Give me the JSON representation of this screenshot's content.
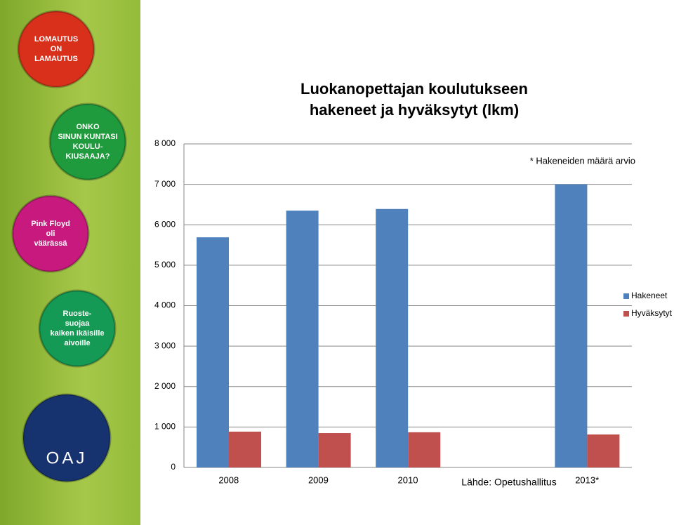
{
  "sidebar": {
    "badges": [
      {
        "lines": [
          "LOMAUTUS",
          "ON",
          "LAMAUTUS"
        ]
      },
      {
        "lines": [
          "ONKO",
          "SINUN KUNTASI",
          "KOULU-",
          "KIUSAAJA?"
        ]
      },
      {
        "lines": [
          "Pink Floyd",
          "oli",
          "väärässä"
        ]
      },
      {
        "lines": [
          "Ruoste-",
          "suojaa",
          "kaiken ikäisille",
          "aivoille"
        ]
      },
      {
        "lines": [
          "OAJ"
        ]
      }
    ]
  },
  "chart_data": {
    "type": "bar",
    "title": "Luokanopettajan koulutukseen hakeneet ja hyväksytyt (lkm)",
    "annotations": [
      "* Hakeneiden määrä arvio",
      "Lähde: Opetushallitus"
    ],
    "categories": [
      "2008",
      "2009",
      "2010",
      null,
      "2013*"
    ],
    "series": [
      {
        "name": "Hakeneet",
        "color": "#4f81bd",
        "values": [
          5690,
          6350,
          6390,
          null,
          7000
        ]
      },
      {
        "name": "Hyväksytyt",
        "color": "#c0504d",
        "values": [
          885,
          850,
          870,
          null,
          815
        ]
      }
    ],
    "ylim": [
      0,
      8000
    ],
    "yticks": [
      0,
      {
        "value": 1000,
        "label": "1 000"
      },
      {
        "value": 2000,
        "label": "2 000"
      },
      {
        "value": 3000,
        "label": "3 000"
      },
      {
        "value": 4000,
        "label": "4 000"
      },
      {
        "value": 5000,
        "label": "5 000"
      },
      {
        "value": 6000,
        "label": "6 000"
      },
      {
        "value": 7000,
        "label": "7 000"
      },
      {
        "value": 8000,
        "label": "8 000"
      }
    ],
    "grid": true,
    "legend": "right"
  }
}
